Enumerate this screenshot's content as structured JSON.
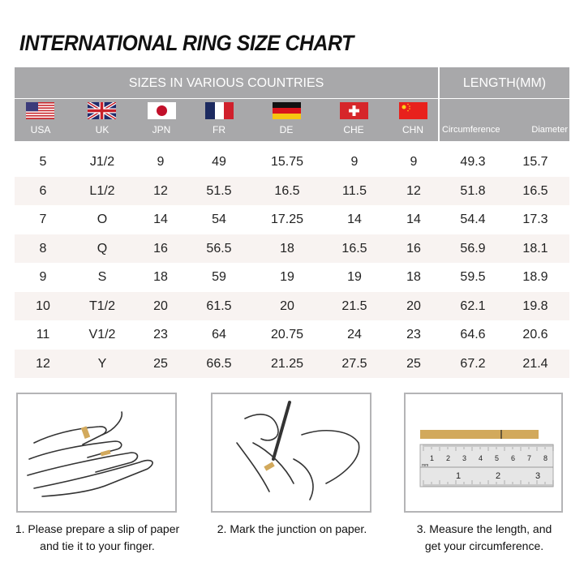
{
  "title": "INTERNATIONAL RING SIZE CHART",
  "header": {
    "sizes_label": "SIZES IN VARIOUS COUNTRIES",
    "length_label": "LENGTH(MM)"
  },
  "columns": [
    {
      "label": "USA",
      "flag": "usa-flag"
    },
    {
      "label": "UK",
      "flag": "uk-flag"
    },
    {
      "label": "JPN",
      "flag": "japan-flag"
    },
    {
      "label": "FR",
      "flag": "france-flag"
    },
    {
      "label": "DE",
      "flag": "germany-flag"
    },
    {
      "label": "CHE",
      "flag": "switzerland-flag"
    },
    {
      "label": "CHN",
      "flag": "china-flag"
    },
    {
      "label": "Circumference"
    },
    {
      "label": "Diameter"
    }
  ],
  "rows": [
    [
      "5",
      "J1/2",
      "9",
      "49",
      "15.75",
      "9",
      "9",
      "49.3",
      "15.7"
    ],
    [
      "6",
      "L1/2",
      "12",
      "51.5",
      "16.5",
      "11.5",
      "12",
      "51.8",
      "16.5"
    ],
    [
      "7",
      "O",
      "14",
      "54",
      "17.25",
      "14",
      "14",
      "54.4",
      "17.3"
    ],
    [
      "8",
      "Q",
      "16",
      "56.5",
      "18",
      "16.5",
      "16",
      "56.9",
      "18.1"
    ],
    [
      "9",
      "S",
      "18",
      "59",
      "19",
      "19",
      "18",
      "59.5",
      "18.9"
    ],
    [
      "10",
      "T1/2",
      "20",
      "61.5",
      "20",
      "21.5",
      "20",
      "62.1",
      "19.8"
    ],
    [
      "11",
      "V1/2",
      "23",
      "64",
      "20.75",
      "24",
      "23",
      "64.6",
      "20.6"
    ],
    [
      "12",
      "Y",
      "25",
      "66.5",
      "21.25",
      "27.5",
      "25",
      "67.2",
      "21.4"
    ]
  ],
  "colors": {
    "header": "#a8a8aa",
    "alt_row": "#f8f3f1",
    "paper_strip": "#d2a95c"
  },
  "steps": [
    {
      "line1": "1. Please prepare a slip of paper",
      "line2": "and tie it to your finger."
    },
    {
      "line1": "2. Mark the junction on paper.",
      "line2": ""
    },
    {
      "line1": "3. Measure the length, and",
      "line2": "get your circumference."
    }
  ],
  "ruler": {
    "mm_label": "mm",
    "top_ticks": [
      "1",
      "2",
      "3",
      "4",
      "5",
      "6",
      "7",
      "8"
    ],
    "bottom_ticks": [
      "1",
      "2",
      "3"
    ]
  }
}
